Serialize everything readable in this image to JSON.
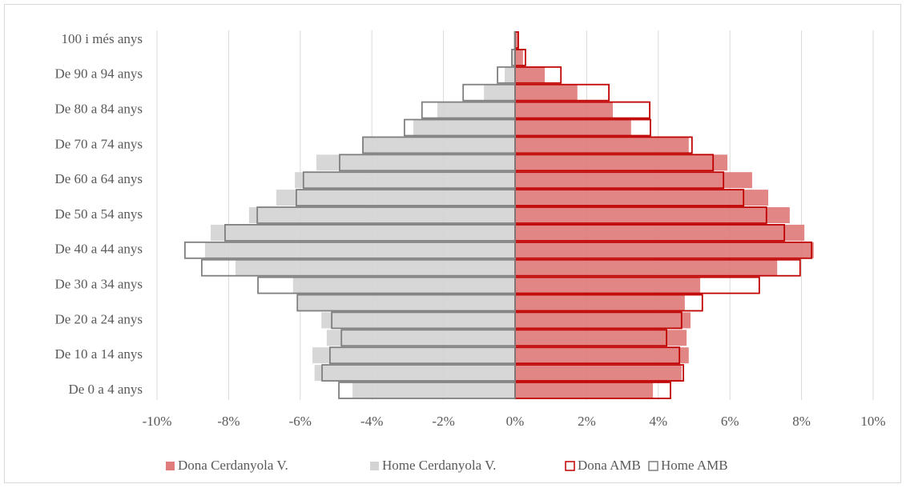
{
  "chart_data": {
    "type": "pyramid",
    "categories": [
      "De 0 a 4 anys",
      null,
      "De 10 a 14 anys",
      null,
      "De 20 a 24 anys",
      null,
      "De 30 a 34 anys",
      null,
      "De 40 a 44 anys",
      null,
      "De 50 a 54 anys",
      null,
      "De 60 a 64 anys",
      null,
      "De 70 a 74 anys",
      null,
      "De 80 a 84 anys",
      null,
      "De 90 a 94 anys",
      null,
      "100 i més anys"
    ],
    "series": [
      {
        "name": "Dona Cerdanyola V.",
        "color": "#df7b7b",
        "style": "filled",
        "values": [
          3.85,
          4.65,
          4.85,
          4.79,
          4.9,
          4.74,
          5.17,
          7.32,
          8.34,
          8.08,
          7.67,
          7.07,
          6.62,
          5.93,
          4.85,
          3.24,
          2.73,
          1.74,
          0.83,
          0.22,
          0.07
        ]
      },
      {
        "name": "Home Cerdanyola V.",
        "color": "#d4d4d4",
        "style": "filled",
        "values": [
          -4.54,
          -5.6,
          -5.66,
          -5.26,
          -5.41,
          -6.06,
          -6.2,
          -7.81,
          -8.66,
          -8.5,
          -7.43,
          -6.67,
          -6.15,
          -5.55,
          -4.27,
          -2.84,
          -2.17,
          -0.87,
          -0.29,
          -0.07,
          -0.02
        ]
      },
      {
        "name": "Dona AMB",
        "color": "#c00000",
        "style": "outline",
        "values": [
          4.34,
          4.7,
          4.59,
          4.23,
          4.65,
          5.23,
          6.82,
          7.96,
          8.28,
          7.52,
          7.02,
          6.38,
          5.82,
          5.53,
          4.94,
          3.78,
          3.76,
          2.62,
          1.28,
          0.29,
          0.09
        ]
      },
      {
        "name": "Home AMB",
        "color": "#7f7f7f",
        "style": "outline",
        "values": [
          -4.92,
          -5.39,
          -5.17,
          -4.85,
          -5.12,
          -6.08,
          -7.18,
          -8.75,
          -9.22,
          -8.1,
          -7.2,
          -6.11,
          -5.91,
          -4.9,
          -4.25,
          -3.09,
          -2.6,
          -1.45,
          -0.49,
          -0.09,
          -0.01
        ]
      }
    ],
    "xlim": [
      -10,
      10
    ],
    "xticks": [
      {
        "value": -10,
        "label": "-10%"
      },
      {
        "value": -8,
        "label": "-8%"
      },
      {
        "value": -6,
        "label": "-6%"
      },
      {
        "value": -4,
        "label": "-4%"
      },
      {
        "value": -2,
        "label": "-2%"
      },
      {
        "value": 0,
        "label": "0%"
      },
      {
        "value": 2,
        "label": "2%"
      },
      {
        "value": 4,
        "label": "4%"
      },
      {
        "value": 6,
        "label": "6%"
      },
      {
        "value": 8,
        "label": "8%"
      },
      {
        "value": 10,
        "label": "10%"
      }
    ],
    "grid": true,
    "legend": "bottom"
  }
}
